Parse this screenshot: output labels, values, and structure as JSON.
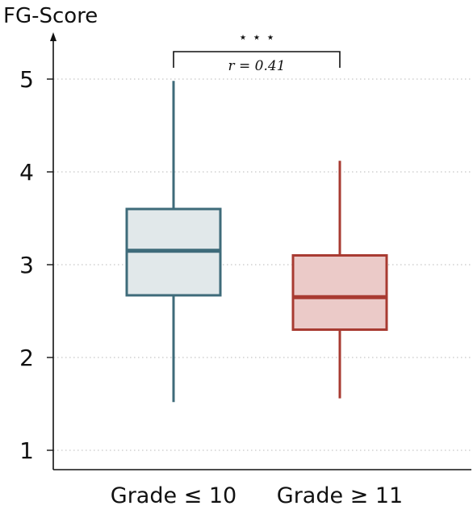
{
  "chart_data": {
    "type": "box",
    "ylabel": "FG-Score",
    "xlabel": "",
    "ylim": [
      0.8,
      5.5
    ],
    "yticks": [
      1,
      2,
      3,
      4,
      5
    ],
    "grid": "horizontal-dotted",
    "categories": [
      "Grade ≤ 10",
      "Grade ≥ 11"
    ],
    "series": [
      {
        "category": "Grade ≤ 10",
        "whisker_low": 1.52,
        "q1": 2.67,
        "median": 3.15,
        "q3": 3.6,
        "whisker_high": 4.98,
        "stroke": "#3e6b7a",
        "fill": "#e1e8ea"
      },
      {
        "category": "Grade ≥ 11",
        "whisker_low": 1.56,
        "q1": 2.3,
        "median": 2.65,
        "q3": 3.1,
        "whisker_high": 4.12,
        "stroke": "#a83b32",
        "fill": "#ebcac8"
      }
    ],
    "annotation": {
      "stars": "⋆ ⋆ ⋆",
      "effect_size": "r = 0.41"
    }
  }
}
